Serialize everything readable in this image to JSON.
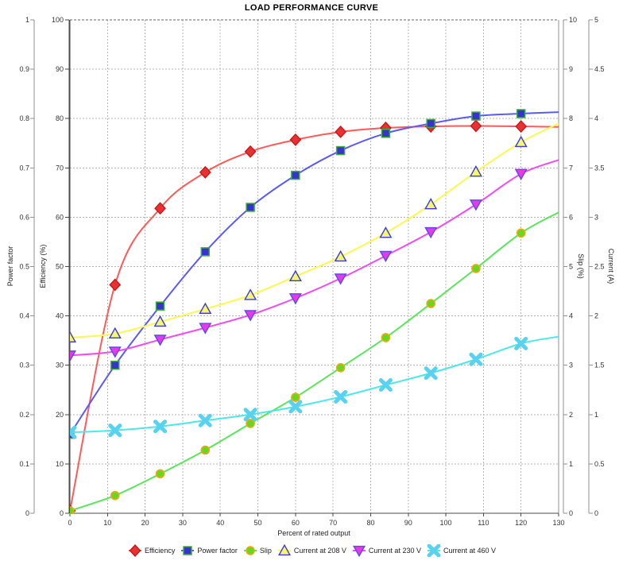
{
  "title": "LOAD PERFORMANCE CURVE",
  "chart_data": {
    "type": "line",
    "title": "LOAD PERFORMANCE CURVE",
    "xlabel": "Percent of rated output",
    "x_axis": {
      "min": 0,
      "max": 130,
      "step": 10,
      "ticks": [
        "0",
        "10",
        "20",
        "30",
        "40",
        "50",
        "60",
        "70",
        "80",
        "90",
        "100",
        "110",
        "120",
        "130"
      ]
    },
    "axes": [
      {
        "id": "power_factor",
        "title": "Power factor",
        "side": "left-outer",
        "min": 0,
        "max": 1,
        "step": 0.1,
        "ticks": [
          "0",
          "0.1",
          "0.2",
          "0.3",
          "0.4",
          "0.5",
          "0.6",
          "0.7",
          "0.8",
          "0.9",
          "1"
        ]
      },
      {
        "id": "efficiency",
        "title": "Efficiency (%)",
        "side": "left-inner",
        "min": 0,
        "max": 100,
        "step": 10,
        "ticks": [
          "0",
          "10",
          "20",
          "30",
          "40",
          "50",
          "60",
          "70",
          "80",
          "90",
          "100"
        ]
      },
      {
        "id": "slip",
        "title": "Slip (%)",
        "side": "right-inner",
        "min": 0,
        "max": 10,
        "step": 1,
        "ticks": [
          "0",
          "1",
          "2",
          "3",
          "4",
          "5",
          "6",
          "7",
          "8",
          "9",
          "10"
        ]
      },
      {
        "id": "current",
        "title": "Current (A)",
        "side": "right-outer",
        "min": 0,
        "max": 5,
        "step": 0.5,
        "ticks": [
          "0",
          "0.5",
          "1",
          "1.5",
          "2",
          "2.5",
          "3",
          "3.5",
          "4",
          "4.5",
          "5"
        ]
      }
    ],
    "x": [
      0,
      12,
      24,
      36,
      48,
      60,
      72,
      84,
      96,
      108,
      120
    ],
    "series": [
      {
        "name": "Efficiency",
        "axis": "efficiency",
        "marker": "diamond",
        "line_color": "#ff5a5a",
        "marker_fill": "#e63232",
        "marker_stroke": "#c81414",
        "values": [
          0.5,
          46.3,
          61.8,
          69.1,
          73.3,
          75.7,
          77.3,
          78.1,
          78.4,
          78.5,
          78.4
        ],
        "fit_end_value": 78.3
      },
      {
        "name": "Power factor",
        "axis": "power_factor",
        "marker": "square",
        "line_color": "#5a5af5",
        "marker_fill": "#3535cc",
        "marker_stroke": "#3aae3a",
        "values": [
          0.16,
          0.3,
          0.42,
          0.53,
          0.62,
          0.685,
          0.735,
          0.77,
          0.79,
          0.805,
          0.81
        ],
        "fit_end_value": 0.813
      },
      {
        "name": "Slip",
        "axis": "slip",
        "marker": "circle",
        "line_color": "#5ae65a",
        "marker_fill": "#66d822",
        "marker_stroke": "#efa810",
        "values": [
          0.05,
          0.36,
          0.8,
          1.28,
          1.82,
          2.35,
          2.95,
          3.56,
          4.25,
          4.96,
          5.68
        ],
        "fit_end_value": 6.1
      },
      {
        "name": "Current at 208 V",
        "axis": "current",
        "marker": "triangle-up",
        "line_color": "#fafa4b",
        "marker_fill": "#f7f76e",
        "marker_stroke": "#3a3ae0",
        "values": [
          1.78,
          1.82,
          1.94,
          2.07,
          2.21,
          2.4,
          2.6,
          2.84,
          3.13,
          3.46,
          3.76
        ],
        "fit_end_value": 3.95
      },
      {
        "name": "Current at 230 V",
        "axis": "current",
        "marker": "triangle-down",
        "line_color": "#f04cf0",
        "marker_fill": "#e53ae5",
        "marker_stroke": "#5a4ce0",
        "values": [
          1.6,
          1.64,
          1.76,
          1.88,
          2.01,
          2.18,
          2.38,
          2.61,
          2.85,
          3.13,
          3.44
        ],
        "fit_end_value": 3.58
      },
      {
        "name": "Current at 460 V",
        "axis": "current",
        "marker": "x-cross",
        "line_color": "#4ce8e8",
        "marker_fill": "#58d2ee",
        "marker_stroke": "#58d2ee",
        "values": [
          0.82,
          0.84,
          0.88,
          0.94,
          1.0,
          1.08,
          1.18,
          1.3,
          1.42,
          1.56,
          1.72
        ],
        "fit_end_value": 1.79
      }
    ],
    "legend_position": "bottom",
    "grid": "dashed"
  },
  "colors": {
    "grid": "#b4b4b4",
    "axis_dark": "#4a4a4a",
    "axis_light": "#909090",
    "background": "#ffffff"
  }
}
